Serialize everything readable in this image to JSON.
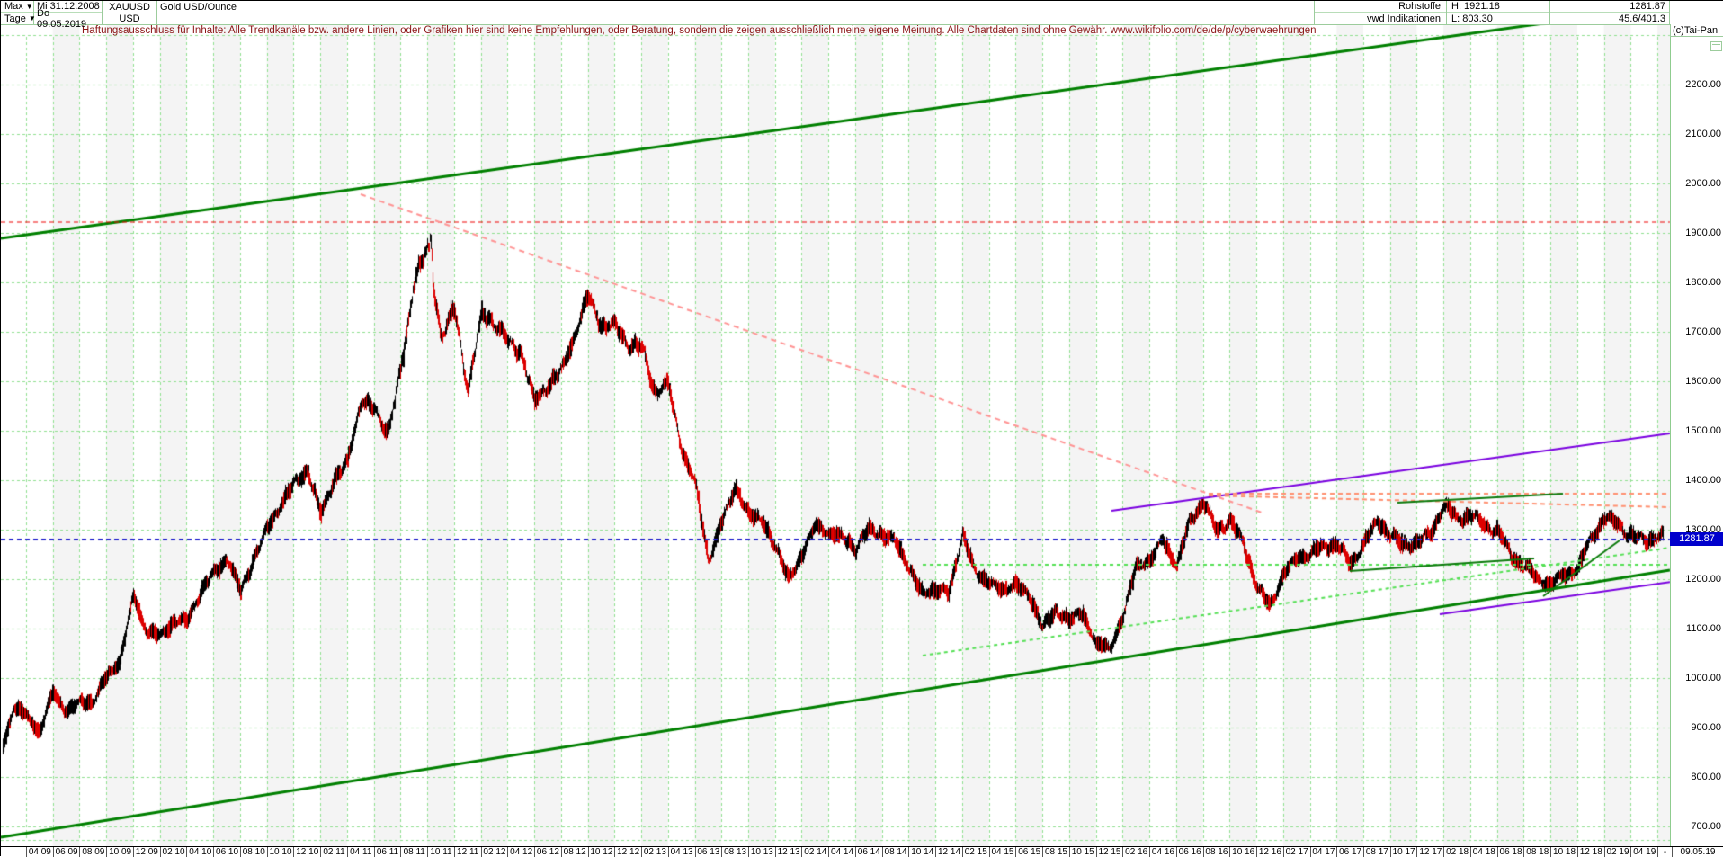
{
  "header": {
    "range_selector": "Max",
    "period_selector": "Tage",
    "dropdown_icon": "▼",
    "date_from": "Mi 31.12.2008",
    "date_to": "Do 09.05.2019",
    "symbol": "XAUUSD",
    "currency": "USD",
    "title": "Gold USD/Ounce",
    "category": "Rohstoffe",
    "source": "vwd Indikationen",
    "high_label": "H: 1921.18",
    "low_label": "L: 803.30",
    "last_price": "1281.87",
    "change_info": "45.6/401.3",
    "copyright": "(c)Tai-Pan"
  },
  "disclaimer": "Haftungsausschluss für Inhalte: Alle Trendkanäle bzw. andere Linien, oder Grafiken hier sind keine Empfehlungen, oder Beratung, sondern die zeigen ausschließlich meine eigene Meinung. Alle Chartdaten sind ohne Gewähr.  www.wikifolio.com/de/de/p/cyberwaehrungen",
  "price_axis": {
    "labels": [
      "2200.00",
      "2100.00",
      "2000.00",
      "1900.00",
      "1800.00",
      "1700.00",
      "1600.00",
      "1500.00",
      "1400.00",
      "1300.00",
      "1200.00",
      "1100.00",
      "1000.00",
      "900.00",
      "800.00",
      "700.00"
    ],
    "top_value": 2200,
    "step": 100,
    "current_price_tag": "1281.87"
  },
  "time_axis": {
    "labels": [
      "04 09",
      "06 09",
      "08 09",
      "10 09",
      "12 09",
      "02 10",
      "04 10",
      "06 10",
      "08 10",
      "10 10",
      "12 10",
      "02 11",
      "04 11",
      "06 11",
      "08 11",
      "10 11",
      "12 11",
      "02 12",
      "04 12",
      "06 12",
      "08 12",
      "10 12",
      "12 12",
      "02 13",
      "04 13",
      "06 13",
      "08 13",
      "10 13",
      "12 13",
      "02 14",
      "04 14",
      "06 14",
      "08 14",
      "10 14",
      "12 14",
      "02 15",
      "04 15",
      "06 15",
      "08 15",
      "10 15",
      "12 15",
      "02 16",
      "04 16",
      "06 16",
      "08 16",
      "10 16",
      "12 16",
      "02 17",
      "04 17",
      "06 17",
      "08 17",
      "10 17",
      "12 17",
      "02 18",
      "04 18",
      "06 18",
      "08 18",
      "10 18",
      "12 18",
      "02 19",
      "04 19",
      "-",
      "09.05.19"
    ]
  },
  "chart_data": {
    "type": "candlestick-daily",
    "series_name": "XAUUSD Gold USD/Ounce",
    "unit": "USD/oz",
    "visible_price_range": [
      700,
      2300
    ],
    "high": 1921.18,
    "low": 803.3,
    "last": 1281.87,
    "monthly_anchors": {
      "start": "2009-01",
      "values": [
        845,
        940,
        920,
        890,
        975,
        935,
        950,
        950,
        1000,
        1040,
        1170,
        1095,
        1080,
        1115,
        1115,
        1180,
        1210,
        1240,
        1170,
        1245,
        1305,
        1355,
        1385,
        1420,
        1330,
        1410,
        1435,
        1560,
        1535,
        1500,
        1625,
        1815,
        1860,
        1690,
        1745,
        1590,
        1735,
        1720,
        1670,
        1660,
        1560,
        1600,
        1615,
        1690,
        1770,
        1720,
        1715,
        1675,
        1660,
        1580,
        1595,
        1470,
        1390,
        1235,
        1310,
        1395,
        1330,
        1325,
        1255,
        1205,
        1245,
        1325,
        1285,
        1290,
        1250,
        1315,
        1285,
        1285,
        1210,
        1175,
        1175,
        1185,
        1285,
        1215,
        1185,
        1185,
        1190,
        1170,
        1095,
        1135,
        1115,
        1140,
        1065,
        1060,
        1115,
        1235,
        1235,
        1290,
        1215,
        1320,
        1350,
        1310,
        1315,
        1275,
        1175,
        1150,
        1210,
        1250,
        1245,
        1265,
        1265,
        1240,
        1270,
        1320,
        1280,
        1270,
        1275,
        1300,
        1345,
        1320,
        1325,
        1315,
        1300,
        1250,
        1220,
        1200,
        1190,
        1215,
        1220,
        1280,
        1320,
        1315,
        1290,
        1280,
        1282
      ]
    },
    "trendlines": [
      {
        "name": "upper-green-channel",
        "color": "#008000",
        "width": 3,
        "dash": null,
        "pts": [
          [
            0,
            264
          ],
          [
            1916,
            -3
          ]
        ]
      },
      {
        "name": "lower-green-channel",
        "color": "#008000",
        "width": 3,
        "dash": null,
        "pts": [
          [
            0,
            930
          ],
          [
            1856,
            633
          ]
        ]
      },
      {
        "name": "all-time-high-line",
        "color": "#ee0000",
        "width": 1,
        "dash": [
          5,
          4
        ],
        "pts": [
          [
            0,
            246
          ],
          [
            1856,
            246
          ]
        ]
      },
      {
        "name": "decline-from-peak",
        "color": "#ff9494",
        "width": 2,
        "dash": [
          6,
          5
        ],
        "pts": [
          [
            400,
            215
          ],
          [
            1405,
            570
          ]
        ]
      },
      {
        "name": "current-price-line",
        "color": "#2020cc",
        "width": 2,
        "dash": [
          5,
          4
        ],
        "pts": [
          [
            0,
            599
          ],
          [
            1856,
            599
          ]
        ]
      },
      {
        "name": "purple-upper",
        "color": "#7a00e0",
        "width": 2,
        "dash": null,
        "pts": [
          [
            1235,
            567
          ],
          [
            1856,
            481
          ]
        ]
      },
      {
        "name": "purple-lower",
        "color": "#7a00e0",
        "width": 2,
        "dash": null,
        "pts": [
          [
            1600,
            682
          ],
          [
            1916,
            638
          ]
        ]
      },
      {
        "name": "salmon-flat",
        "color": "#ff9070",
        "width": 2,
        "dash": [
          5,
          4
        ],
        "pts": [
          [
            1343,
            548
          ],
          [
            1856,
            548
          ]
        ]
      },
      {
        "name": "salmon-declining",
        "color": "#ff9070",
        "width": 2,
        "dash": [
          5,
          4
        ],
        "pts": [
          [
            1343,
            550
          ],
          [
            1856,
            563
          ]
        ]
      },
      {
        "name": "lime-flat",
        "color": "#55e055",
        "width": 2,
        "dash": [
          4,
          4
        ],
        "pts": [
          [
            1025,
            627
          ],
          [
            1856,
            627
          ]
        ]
      },
      {
        "name": "lime-rising",
        "color": "#55e055",
        "width": 2,
        "dash": [
          4,
          4
        ],
        "pts": [
          [
            1025,
            728
          ],
          [
            1856,
            608
          ]
        ]
      },
      {
        "name": "green-resistance-short",
        "color": "#0b7a0b",
        "width": 2,
        "dash": null,
        "pts": [
          [
            1553,
            558
          ],
          [
            1737,
            548
          ]
        ]
      },
      {
        "name": "green-support-short",
        "color": "#0b7a0b",
        "width": 2,
        "dash": null,
        "pts": [
          [
            1500,
            634
          ],
          [
            1705,
            620
          ]
        ]
      },
      {
        "name": "green-steep-rally",
        "color": "#0b7a0b",
        "width": 2,
        "dash": null,
        "pts": [
          [
            1715,
            662
          ],
          [
            1800,
            600
          ]
        ]
      }
    ]
  },
  "colors": {
    "grid_green": "#8fe08f",
    "band_gray": "#f4f4f4",
    "candle_up": "#000000",
    "candle_down": "#dd0000",
    "price_tag_bg": "#0000cc",
    "axis_border": "#8fcc8f"
  }
}
